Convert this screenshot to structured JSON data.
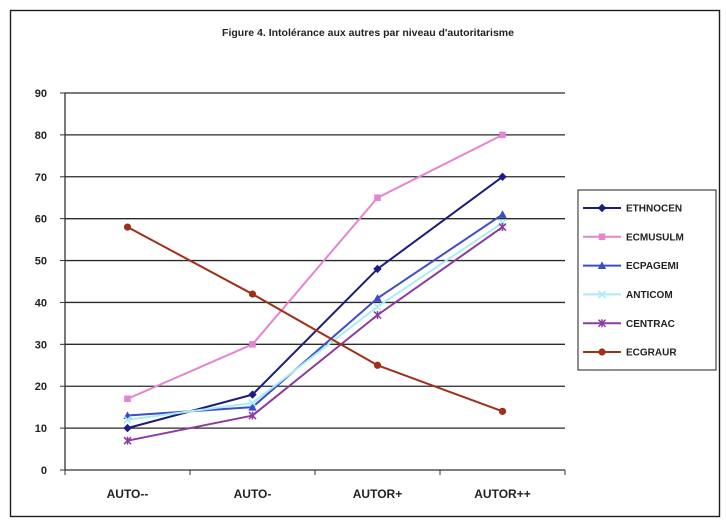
{
  "chart_data": {
    "type": "line",
    "title": "Figure 4. Intolérance aux autres par niveau d'autoritarisme",
    "categories": [
      "AUTO--",
      "AUTO-",
      "AUTOR+",
      "AUTOR++"
    ],
    "ylim": [
      0,
      90
    ],
    "yticks": [
      0,
      10,
      20,
      30,
      40,
      50,
      60,
      70,
      80,
      90
    ],
    "grid": true,
    "legend_position": "right",
    "series": [
      {
        "name": "ETHNOCEN",
        "values": [
          10,
          18,
          48,
          70
        ],
        "color": "#1c1c80",
        "marker": "diamond"
      },
      {
        "name": "ECMUSULM",
        "values": [
          17,
          30,
          65,
          80
        ],
        "color": "#e385d2",
        "marker": "square"
      },
      {
        "name": "ECPAGEMI",
        "values": [
          13,
          15,
          41,
          61
        ],
        "color": "#3f4cc8",
        "marker": "triangle"
      },
      {
        "name": "ANTICOM",
        "values": [
          12,
          16,
          39,
          59
        ],
        "color": "#a9ecf3",
        "marker": "x"
      },
      {
        "name": "CENTRAC",
        "values": [
          7,
          13,
          37,
          58
        ],
        "color": "#8e3a9e",
        "marker": "star"
      },
      {
        "name": "ECGRAUR",
        "values": [
          58,
          42,
          25,
          14
        ],
        "color": "#a1301a",
        "marker": "circle"
      }
    ]
  }
}
